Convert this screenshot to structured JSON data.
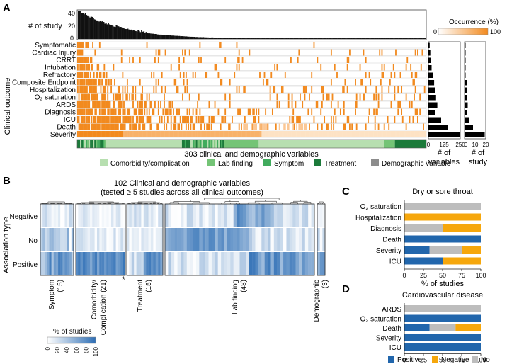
{
  "colors": {
    "orange": "#f28a1f",
    "orange_light": "#fde2c4",
    "comorbidity": "#b7dfb0",
    "lab": "#74c476",
    "symptom": "#41ab5d",
    "treatment": "#1b7a3a",
    "demographic": "#8c8c8c",
    "blue": "#2f6fb5",
    "positive": "#2166ac",
    "negative": "#f6a70c",
    "no": "#bdbdbd"
  },
  "panel_a": {
    "label": "A",
    "top_bar_ylabel": "# of study",
    "y_ticks": [
      "40",
      "20",
      "0"
    ],
    "occurrence_title": "Occurrence (%)",
    "occurrence_min": "0",
    "occurrence_max": "100",
    "y_axis_title": "Clinical outcome",
    "variables_caption": "303 clinical and demographic variables",
    "right_vars_ticks": [
      "0",
      "125",
      "250"
    ],
    "right_vars_label_1": "# of",
    "right_vars_label_2": "variables",
    "right_study_ticks": [
      "0",
      "10",
      "20"
    ],
    "right_study_label_1": "# of",
    "right_study_label_2": "study"
  },
  "legend_a": [
    {
      "label": "Comorbidity/complication",
      "color": "#b7dfb0"
    },
    {
      "label": "Lab finding",
      "color": "#74c476"
    },
    {
      "label": "Symptom",
      "color": "#41ab5d"
    },
    {
      "label": "Treatment",
      "color": "#1b7a3a"
    },
    {
      "label": "Demographic variable",
      "color": "#8c8c8c"
    }
  ],
  "panel_b": {
    "label": "B",
    "title_line1": "102 Clinical and demographic variables",
    "title_line2": "(tested ≥ 5 studies across all clinical outcomes)",
    "y_axis_title": "Association type",
    "asterisk": "*",
    "colorbar_title": "% of studies",
    "colorbar_ticks": [
      "0",
      "20",
      "40",
      "60",
      "80",
      "100"
    ]
  },
  "panel_c_letter": "C",
  "panel_d_letter": "D",
  "legend_cd": [
    {
      "label": "Positive",
      "color": "#2166ac"
    },
    {
      "label": "Negative",
      "color": "#f6a70c"
    },
    {
      "label": "No",
      "color": "#bdbdbd"
    }
  ],
  "chart_data": [
    {
      "id": "A_outcomes",
      "type": "heatmap",
      "title": "303 clinical and demographic variables",
      "ylabel": "Clinical outcome",
      "rows": [
        "Symptomatic",
        "Cardiac Injury",
        "CRRT",
        "Intubation",
        "Refractory",
        "Composite Endpoint",
        "Hospitalization",
        "O2 saturation",
        "ARDS",
        "Diagnosis",
        "ICU",
        "Death",
        "Severity"
      ],
      "right_bars": [
        {
          "name": "# of variables",
          "xlim": [
            0,
            250
          ],
          "values": [
            10,
            15,
            18,
            25,
            35,
            45,
            50,
            60,
            70,
            50,
            100,
            150,
            260
          ]
        },
        {
          "name": "# of study",
          "xlim": [
            0,
            20
          ],
          "values": [
            1,
            1,
            1,
            1,
            1,
            2,
            2,
            2,
            3,
            2,
            4,
            8,
            19
          ]
        }
      ],
      "top_bars": {
        "name": "# of study",
        "ylim": [
          0,
          40
        ],
        "max": 40,
        "min": 1
      },
      "colorbar": {
        "label": "Occurrence (%)",
        "range": [
          0,
          100
        ]
      }
    },
    {
      "id": "B_associations",
      "type": "heatmap",
      "title": "102 Clinical and demographic variables",
      "ylabel": "Association type",
      "rows": [
        "Negative",
        "No",
        "Positive"
      ],
      "groups": [
        {
          "label": "Symptom",
          "count": "(15)"
        },
        {
          "label": "Comorbidity/ Complication",
          "label_line1": "Comorbidity/",
          "label_line2": "Complication (21)",
          "count": "(21)"
        },
        {
          "label": "Treatment",
          "count": "(15)"
        },
        {
          "label": "Lab finding",
          "count": "(48)"
        },
        {
          "label": "Demographic",
          "count": "(3)"
        }
      ],
      "colorbar": {
        "label": "% of studies",
        "range": [
          0,
          100
        ]
      }
    },
    {
      "id": "C_dry_throat",
      "type": "bar",
      "title": "Dry or sore throat",
      "xlabel": "% of studies",
      "xlim": [
        0,
        100
      ],
      "x_ticks": [
        "0",
        "25",
        "50",
        "75",
        "100"
      ],
      "categories": [
        "O2 saturation",
        "Hospitalization",
        "Diagnosis",
        "Death",
        "Severity",
        "ICU"
      ],
      "series": [
        {
          "name": "Positive",
          "values": [
            0,
            0,
            0,
            100,
            33,
            50
          ]
        },
        {
          "name": "No",
          "values": [
            100,
            0,
            50,
            0,
            42,
            0
          ]
        },
        {
          "name": "Negative",
          "values": [
            0,
            100,
            50,
            0,
            25,
            50
          ]
        }
      ]
    },
    {
      "id": "D_cardiovascular",
      "type": "bar",
      "title": "Cardiovascular disease",
      "xlabel": "% of studies",
      "xlim": [
        0,
        100
      ],
      "x_ticks": [
        "0",
        "25",
        "50",
        "75",
        "100"
      ],
      "categories": [
        "ARDS",
        "O2 saturation",
        "Death",
        "Severity",
        "ICU"
      ],
      "series": [
        {
          "name": "Positive",
          "values": [
            0,
            100,
            33,
            100,
            100
          ]
        },
        {
          "name": "No",
          "values": [
            100,
            0,
            34,
            0,
            0
          ]
        },
        {
          "name": "Negative",
          "values": [
            0,
            0,
            33,
            0,
            0
          ]
        }
      ]
    }
  ]
}
